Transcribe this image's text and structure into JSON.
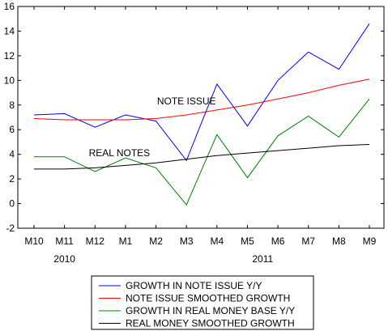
{
  "chart_data": {
    "type": "line",
    "categories": [
      "M10",
      "M11",
      "M12",
      "M1",
      "M2",
      "M3",
      "M4",
      "M5",
      "M6",
      "M7",
      "M8",
      "M9"
    ],
    "year_labels": [
      {
        "label": "2010",
        "anchor_index": 1
      },
      {
        "label": "2011",
        "anchor_index": 7.5
      }
    ],
    "ylim": [
      -2,
      16
    ],
    "yticks": [
      -2,
      0,
      2,
      4,
      6,
      8,
      10,
      12,
      14,
      16
    ],
    "series": [
      {
        "name": "GROWTH IN NOTE ISSUE Y/Y",
        "color": "#0000ff",
        "values": [
          7.2,
          7.3,
          6.2,
          7.2,
          6.7,
          3.5,
          9.7,
          6.3,
          10.0,
          12.3,
          10.9,
          14.6
        ]
      },
      {
        "name": "NOTE ISSUE SMOOTHED GROWTH",
        "color": "#ff0000",
        "values": [
          6.9,
          6.8,
          6.8,
          6.8,
          6.9,
          7.2,
          7.6,
          8.0,
          8.5,
          9.0,
          9.6,
          10.1
        ]
      },
      {
        "name": "GROWTH IN REAL MONEY BASE Y/Y",
        "color": "#008000",
        "values": [
          3.8,
          3.8,
          2.6,
          3.7,
          2.9,
          -0.1,
          5.6,
          2.1,
          5.5,
          7.1,
          5.4,
          8.5
        ]
      },
      {
        "name": "REAL MONEY SMOOTHED GROWTH",
        "color": "#000000",
        "values": [
          2.8,
          2.8,
          2.9,
          3.1,
          3.3,
          3.6,
          3.9,
          4.1,
          4.3,
          4.5,
          4.7,
          4.8
        ]
      }
    ],
    "annotations": [
      {
        "text": "NOTE ISSUE",
        "x_index": 5,
        "y": 8.3
      },
      {
        "text": "REAL NOTES",
        "x_index": 2.8,
        "y": 4.1
      }
    ],
    "legend_position": "bottom-center",
    "grid": false
  }
}
